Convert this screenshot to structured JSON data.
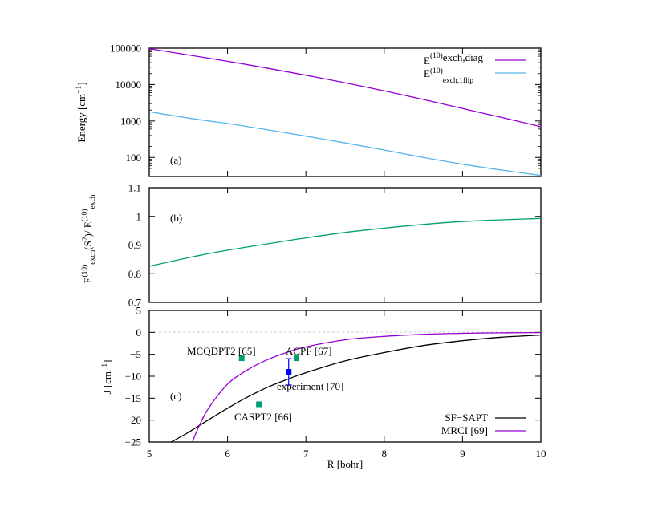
{
  "chart_data": [
    {
      "panel": "a",
      "type": "line",
      "panel_label": "(a)",
      "ylabel": "Energy  [cm",
      "ylabel_sup": "−1",
      "ylabel_end": "]",
      "yscale": "log",
      "xlim": [
        5,
        10
      ],
      "ylim": [
        30,
        100000
      ],
      "yticks": [
        100,
        1000,
        10000,
        100000
      ],
      "yticklabels": [
        "100",
        "1000",
        "10000",
        "100000"
      ],
      "legend_position": "top-right",
      "series": [
        {
          "label": {
            "E": "E",
            "sup": "(10)",
            "sub": "exch,diag"
          },
          "color": "#9400d3",
          "x": [
            5,
            5.5,
            6,
            6.5,
            7,
            7.5,
            8,
            8.5,
            9,
            9.5,
            10
          ],
          "y": [
            97000,
            65000,
            43500,
            28500,
            18000,
            11200,
            6700,
            3900,
            2200,
            1250,
            700
          ]
        },
        {
          "label": {
            "E": "E",
            "sup": "(10)",
            "sub": "exch,1flip"
          },
          "color": "#56b4e9",
          "x": [
            5,
            5.5,
            6,
            6.5,
            7,
            7.5,
            8,
            8.5,
            9,
            9.5,
            10
          ],
          "y": [
            1800,
            1200,
            850,
            580,
            385,
            250,
            160,
            100,
            65,
            45,
            32
          ]
        }
      ]
    },
    {
      "panel": "b",
      "type": "line",
      "panel_label": "(b)",
      "ylabel": {
        "part1": "E",
        "sup1": "(10)",
        "sub1": "exch",
        "mid": "(S",
        "sup2": "2",
        "mid2": ")/ E",
        "sup3": "(10)",
        "sub3": "exch"
      },
      "xlim": [
        5,
        10
      ],
      "ylim": [
        0.7,
        1.1
      ],
      "yticks": [
        0.7,
        0.8,
        0.9,
        1.0,
        1.1
      ],
      "yticklabels": [
        "0.7",
        "0.8",
        "0.9",
        "1",
        "1.1"
      ],
      "series": [
        {
          "color": "#009e73",
          "x": [
            5,
            5.5,
            6,
            6.5,
            7,
            7.5,
            8,
            8.5,
            9,
            9.5,
            10
          ],
          "y": [
            0.826,
            0.856,
            0.882,
            0.904,
            0.925,
            0.944,
            0.959,
            0.972,
            0.982,
            0.988,
            0.993
          ]
        }
      ]
    },
    {
      "panel": "c",
      "type": "line",
      "panel_label": "(c)",
      "ylabel": "J  [cm",
      "ylabel_sup": "−1",
      "ylabel_end": "]",
      "xlabel": "R [bohr]",
      "xlim": [
        5,
        10
      ],
      "ylim": [
        -25,
        5
      ],
      "xticks": [
        5,
        6,
        7,
        8,
        9,
        10
      ],
      "xticklabels": [
        "5",
        "6",
        "7",
        "8",
        "9",
        "10"
      ],
      "yticks": [
        -25,
        -20,
        -15,
        -10,
        -5,
        0,
        5
      ],
      "yticklabels": [
        "−25",
        "−20",
        "−15",
        "−10",
        "−5",
        "0",
        "5"
      ],
      "legend_position": "bottom-right",
      "series": [
        {
          "name": "SF−SAPT",
          "color": "#000000",
          "x": [
            5.28,
            5.5,
            5.75,
            6,
            6.25,
            6.5,
            6.75,
            7,
            7.5,
            8,
            8.5,
            9,
            9.5,
            10
          ],
          "y": [
            -25,
            -22.8,
            -20,
            -17.3,
            -14.8,
            -12.6,
            -10.8,
            -9.2,
            -6.5,
            -4.6,
            -3.0,
            -1.9,
            -1.1,
            -0.6
          ]
        },
        {
          "name": "MRCI [69]",
          "color": "#9400d3",
          "x": [
            5.55,
            5.62,
            5.75,
            6,
            6.25,
            6.5,
            6.75,
            7,
            7.5,
            8,
            8.5,
            9,
            9.5,
            10
          ],
          "y": [
            -25,
            -22,
            -17.5,
            -11.8,
            -8.6,
            -6.3,
            -4.6,
            -3.3,
            -1.7,
            -0.9,
            -0.45,
            -0.22,
            -0.1,
            -0.05
          ]
        }
      ],
      "points": [
        {
          "label": "MCQDPT2 [65]",
          "x": 6.18,
          "y": -5.9,
          "color": "#009e73"
        },
        {
          "label": "ACPF [67]",
          "x": 6.88,
          "y": -5.9,
          "color": "#009e73"
        },
        {
          "label": "CASPT2 [66]",
          "x": 6.4,
          "y": -16.4,
          "color": "#009e73"
        }
      ],
      "experiment": {
        "label": "experiment [70]",
        "x": 6.78,
        "y": -9.0,
        "yerr_low": -12.0,
        "yerr_high": -6.0,
        "color": "#0000ff"
      }
    }
  ]
}
